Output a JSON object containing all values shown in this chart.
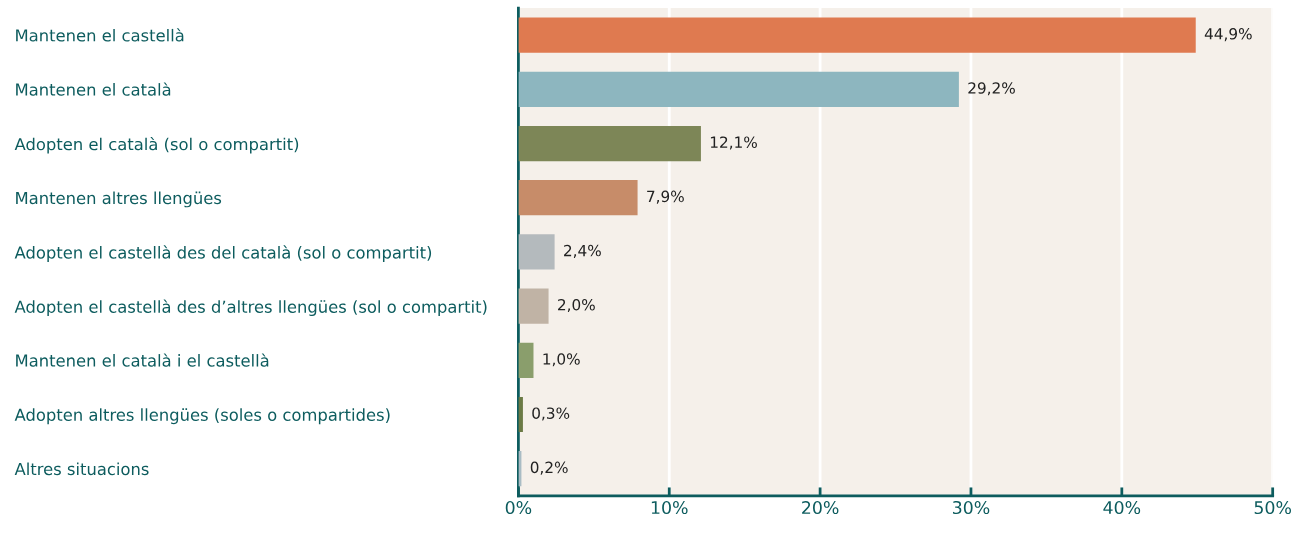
{
  "chart_data": {
    "type": "bar",
    "orientation": "horizontal",
    "categories": [
      "Mantenen el castellà",
      "Mantenen el català",
      "Adopten el català (sol o compartit)",
      "Mantenen altres llengües",
      "Adopten el castellà des del català (sol o compartit)",
      "Adopten el castellà des d’altres llengües (sol o compartit)",
      "Mantenen el català i el castellà",
      "Adopten altres llengües (soles o compartides)",
      "Altres situacions"
    ],
    "values": [
      44.9,
      29.2,
      12.1,
      7.9,
      2.4,
      2.0,
      1.0,
      0.3,
      0.2
    ],
    "value_labels": [
      "44,9%",
      "29,2%",
      "12,1%",
      "7,9%",
      "2,4%",
      "2,0%",
      "1,0%",
      "0,3%",
      "0,2%"
    ],
    "colors": [
      "#df7a50",
      "#8db6bf",
      "#7d8657",
      "#c78c69",
      "#b4babd",
      "#c0b3a5",
      "#8a9e6c",
      "#6b7a45",
      "#a9bcc4"
    ],
    "xlim": [
      0,
      50
    ],
    "xticks": [
      {
        "value": 0,
        "label": "0%"
      },
      {
        "value": 10,
        "label": "10%"
      },
      {
        "value": 20,
        "label": "20%"
      },
      {
        "value": 30,
        "label": "30%"
      },
      {
        "value": 40,
        "label": "40%"
      },
      {
        "value": 50,
        "label": "50%"
      }
    ],
    "grid": "x",
    "legend": false
  }
}
